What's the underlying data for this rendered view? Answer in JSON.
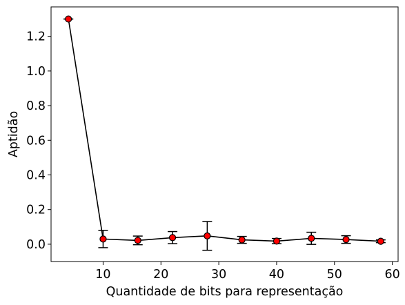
{
  "chart_data": {
    "type": "line",
    "title": "",
    "xlabel": "Quantidade de bits para representação",
    "ylabel": "Aptidão",
    "xlim": [
      1,
      61
    ],
    "ylim": [
      -0.1,
      1.37
    ],
    "xticks": [
      10,
      20,
      30,
      40,
      50,
      60
    ],
    "yticks": [
      0.0,
      0.2,
      0.4,
      0.6,
      0.8,
      1.0,
      1.2
    ],
    "x": [
      4,
      10,
      16,
      22,
      28,
      34,
      40,
      46,
      52,
      58
    ],
    "series": [
      {
        "values": [
          1.3,
          0.03,
          0.022,
          0.038,
          0.048,
          0.025,
          0.018,
          0.034,
          0.027,
          0.017
        ],
        "errors": [
          0.0,
          0.05,
          0.025,
          0.035,
          0.083,
          0.02,
          0.015,
          0.035,
          0.022,
          0.008
        ],
        "line_color": "#000000",
        "marker_color": "#ff0000"
      }
    ]
  }
}
